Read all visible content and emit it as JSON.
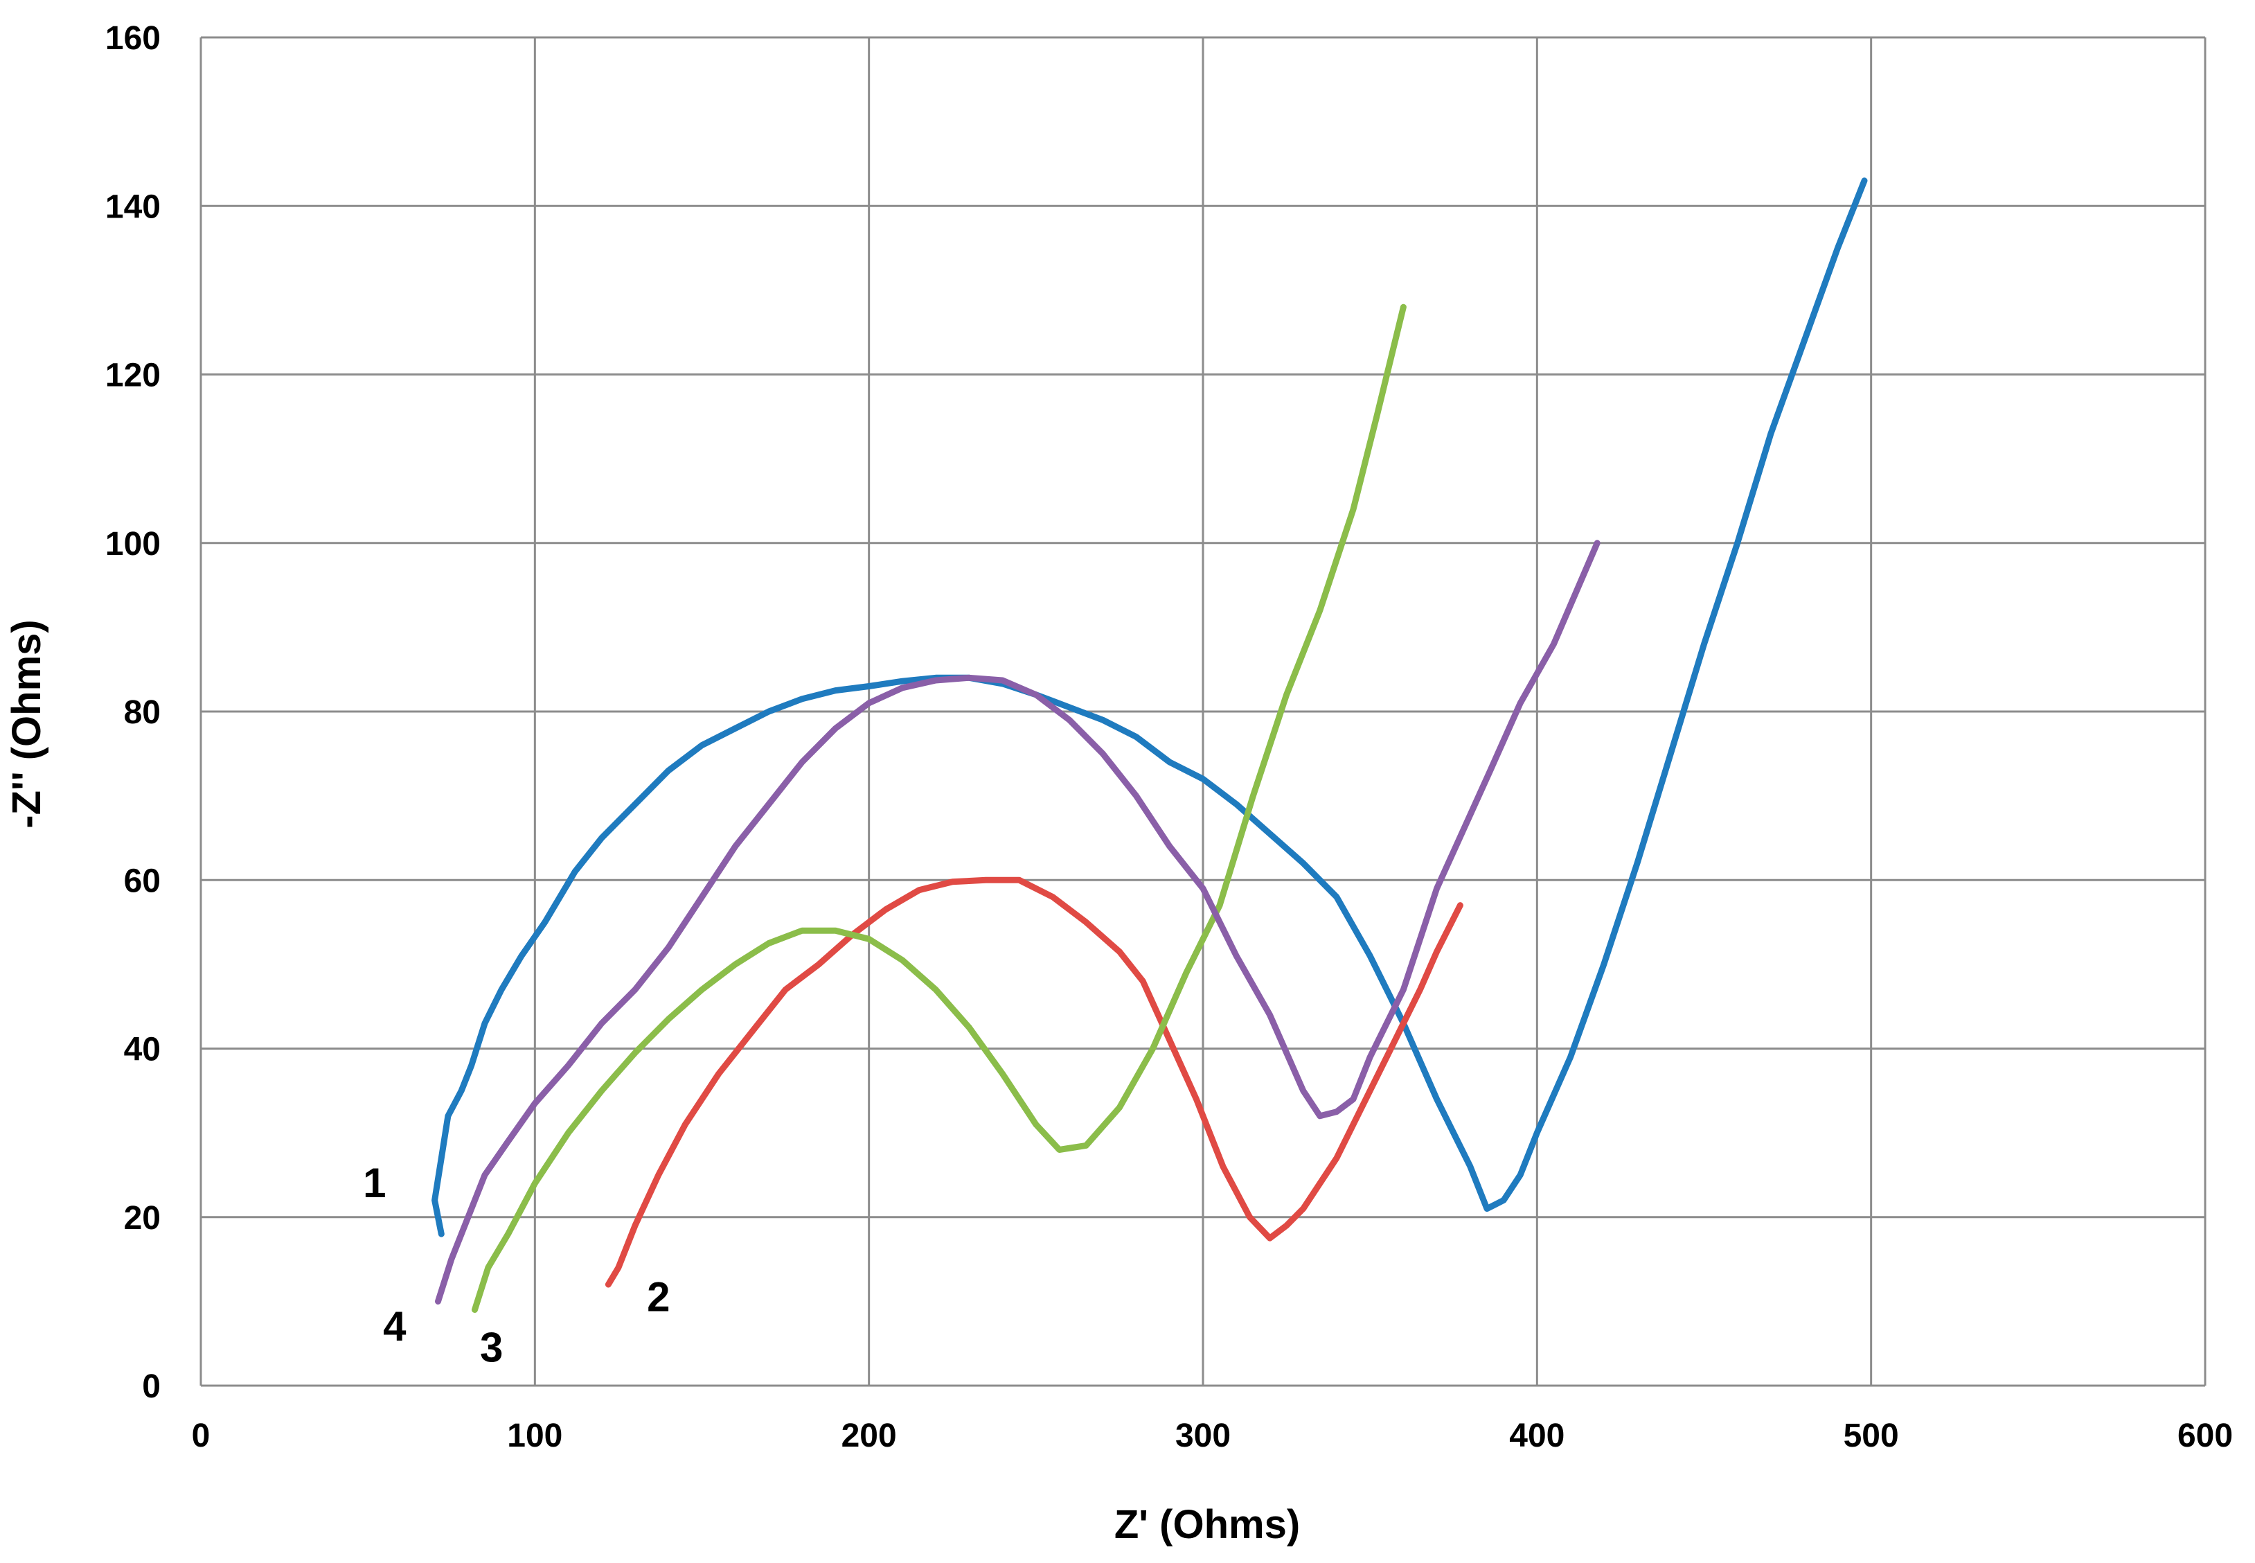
{
  "chart_data": {
    "type": "line",
    "title": "",
    "xlabel": "Z' (Ohms)",
    "ylabel": "-Z'' (Ohms)",
    "xlim": [
      0,
      600
    ],
    "ylim": [
      0,
      160
    ],
    "xticks": [
      0,
      100,
      200,
      300,
      400,
      500,
      600
    ],
    "yticks": [
      0,
      20,
      40,
      60,
      80,
      100,
      120,
      140,
      160
    ],
    "grid": true,
    "series": [
      {
        "name": "1",
        "color": "#1f7bbf",
        "label_at": [
          52,
          24
        ],
        "points": [
          [
            72,
            18
          ],
          [
            70,
            22
          ],
          [
            72,
            27
          ],
          [
            74,
            32
          ],
          [
            78,
            35
          ],
          [
            81,
            38
          ],
          [
            85,
            43
          ],
          [
            90,
            47
          ],
          [
            96,
            51
          ],
          [
            103,
            55
          ],
          [
            112,
            61
          ],
          [
            120,
            65
          ],
          [
            130,
            69
          ],
          [
            140,
            73
          ],
          [
            150,
            76
          ],
          [
            160,
            78
          ],
          [
            170,
            80
          ],
          [
            180,
            81.5
          ],
          [
            190,
            82.5
          ],
          [
            200,
            83
          ],
          [
            210,
            83.6
          ],
          [
            220,
            84
          ],
          [
            230,
            84
          ],
          [
            240,
            83.3
          ],
          [
            250,
            82
          ],
          [
            260,
            80.5
          ],
          [
            270,
            79
          ],
          [
            280,
            77
          ],
          [
            290,
            74
          ],
          [
            300,
            72
          ],
          [
            310,
            69
          ],
          [
            320,
            65.5
          ],
          [
            330,
            62
          ],
          [
            340,
            58
          ],
          [
            350,
            51
          ],
          [
            360,
            43
          ],
          [
            370,
            34
          ],
          [
            380,
            26
          ],
          [
            385,
            21
          ],
          [
            390,
            22
          ],
          [
            395,
            25
          ],
          [
            400,
            30
          ],
          [
            410,
            39
          ],
          [
            420,
            50
          ],
          [
            430,
            62
          ],
          [
            440,
            75
          ],
          [
            450,
            88
          ],
          [
            460,
            100
          ],
          [
            470,
            113
          ],
          [
            480,
            124
          ],
          [
            490,
            135
          ],
          [
            498,
            143
          ]
        ]
      },
      {
        "name": "2",
        "color": "#e04a44",
        "label_at": [
          137,
          10.5
        ],
        "points": [
          [
            122,
            12
          ],
          [
            125,
            14
          ],
          [
            130,
            19
          ],
          [
            137,
            25
          ],
          [
            145,
            31
          ],
          [
            155,
            37
          ],
          [
            165,
            42
          ],
          [
            175,
            47
          ],
          [
            185,
            50
          ],
          [
            195,
            53.5
          ],
          [
            205,
            56.5
          ],
          [
            215,
            58.8
          ],
          [
            225,
            59.8
          ],
          [
            235,
            60
          ],
          [
            245,
            60
          ],
          [
            255,
            58
          ],
          [
            265,
            55
          ],
          [
            275,
            51.5
          ],
          [
            282,
            48
          ],
          [
            290,
            41
          ],
          [
            298,
            34
          ],
          [
            306,
            26
          ],
          [
            314,
            20
          ],
          [
            320,
            17.5
          ],
          [
            325,
            19
          ],
          [
            330,
            21
          ],
          [
            335,
            24
          ],
          [
            340,
            27
          ],
          [
            345,
            31
          ],
          [
            350,
            35
          ],
          [
            355,
            39
          ],
          [
            360,
            43
          ],
          [
            365,
            47
          ],
          [
            370,
            51.5
          ],
          [
            377,
            57
          ]
        ]
      },
      {
        "name": "3",
        "color": "#8bbd4a",
        "label_at": [
          87,
          4.5
        ],
        "points": [
          [
            82,
            9
          ],
          [
            86,
            14
          ],
          [
            92,
            18
          ],
          [
            100,
            24
          ],
          [
            110,
            30
          ],
          [
            120,
            35
          ],
          [
            130,
            39.5
          ],
          [
            140,
            43.5
          ],
          [
            150,
            47
          ],
          [
            160,
            50
          ],
          [
            170,
            52.5
          ],
          [
            180,
            54
          ],
          [
            190,
            54
          ],
          [
            200,
            53
          ],
          [
            210,
            50.5
          ],
          [
            220,
            47
          ],
          [
            230,
            42.5
          ],
          [
            240,
            37
          ],
          [
            250,
            31
          ],
          [
            257,
            28
          ],
          [
            265,
            28.5
          ],
          [
            275,
            33
          ],
          [
            285,
            40
          ],
          [
            295,
            49
          ],
          [
            305,
            57
          ],
          [
            315,
            70
          ],
          [
            325,
            82
          ],
          [
            335,
            92
          ],
          [
            345,
            104
          ],
          [
            352,
            115
          ],
          [
            360,
            128
          ]
        ]
      },
      {
        "name": "4",
        "color": "#8a5fa8",
        "label_at": [
          58,
          7
        ],
        "points": [
          [
            71,
            10
          ],
          [
            75,
            15
          ],
          [
            80,
            20
          ],
          [
            85,
            25
          ],
          [
            92,
            29
          ],
          [
            100,
            33.5
          ],
          [
            110,
            38
          ],
          [
            120,
            43
          ],
          [
            130,
            47
          ],
          [
            140,
            52
          ],
          [
            150,
            58
          ],
          [
            160,
            64
          ],
          [
            170,
            69
          ],
          [
            180,
            74
          ],
          [
            190,
            78
          ],
          [
            200,
            81
          ],
          [
            210,
            82.8
          ],
          [
            220,
            83.7
          ],
          [
            230,
            84
          ],
          [
            240,
            83.7
          ],
          [
            250,
            82
          ],
          [
            260,
            79
          ],
          [
            270,
            75
          ],
          [
            280,
            70
          ],
          [
            290,
            64
          ],
          [
            300,
            59
          ],
          [
            310,
            51
          ],
          [
            320,
            44
          ],
          [
            330,
            35
          ],
          [
            335,
            32
          ],
          [
            340,
            32.5
          ],
          [
            345,
            34
          ],
          [
            350,
            39
          ],
          [
            355,
            43
          ],
          [
            360,
            47
          ],
          [
            365,
            53
          ],
          [
            370,
            59
          ],
          [
            378,
            66
          ],
          [
            386,
            73
          ],
          [
            395,
            81
          ],
          [
            405,
            88
          ],
          [
            418,
            100
          ]
        ]
      }
    ]
  }
}
